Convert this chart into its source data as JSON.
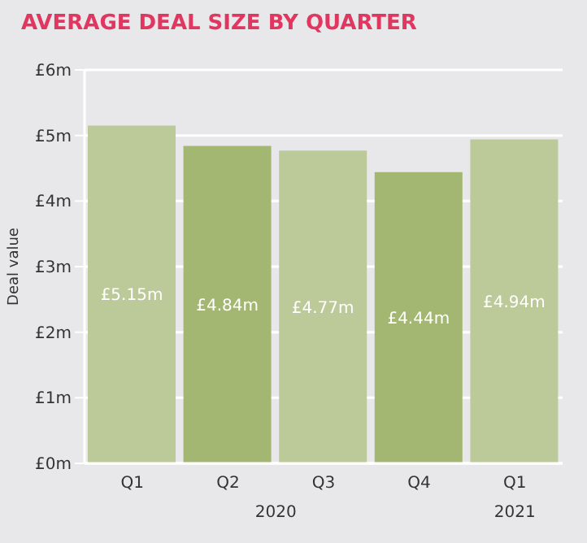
{
  "chart_data": {
    "type": "bar",
    "title": "AVERAGE DEAL SIZE BY QUARTER",
    "ylabel": "Deal value",
    "categories": [
      "Q1",
      "Q2",
      "Q3",
      "Q4",
      "Q1"
    ],
    "values": [
      5.15,
      4.84,
      4.77,
      4.44,
      4.94
    ],
    "colors": [
      "#bcc999",
      "#a3b672",
      "#bcc999",
      "#a3b672",
      "#bcc999"
    ],
    "value_labels": [
      "£5.15m",
      "£4.84m",
      "£4.77m",
      "£4.44m",
      "£4.94m"
    ],
    "ylim": [
      0,
      6
    ],
    "yticks": [
      {
        "value": 0,
        "label": "£0m"
      },
      {
        "value": 1,
        "label": "£1m"
      },
      {
        "value": 2,
        "label": "£2m"
      },
      {
        "value": 3,
        "label": "£3m"
      },
      {
        "value": 4,
        "label": "£4m"
      },
      {
        "value": 5,
        "label": "£5m"
      },
      {
        "value": 6,
        "label": "£6m"
      }
    ],
    "grid": "y",
    "annotations": [
      "2020",
      "2021"
    ]
  }
}
